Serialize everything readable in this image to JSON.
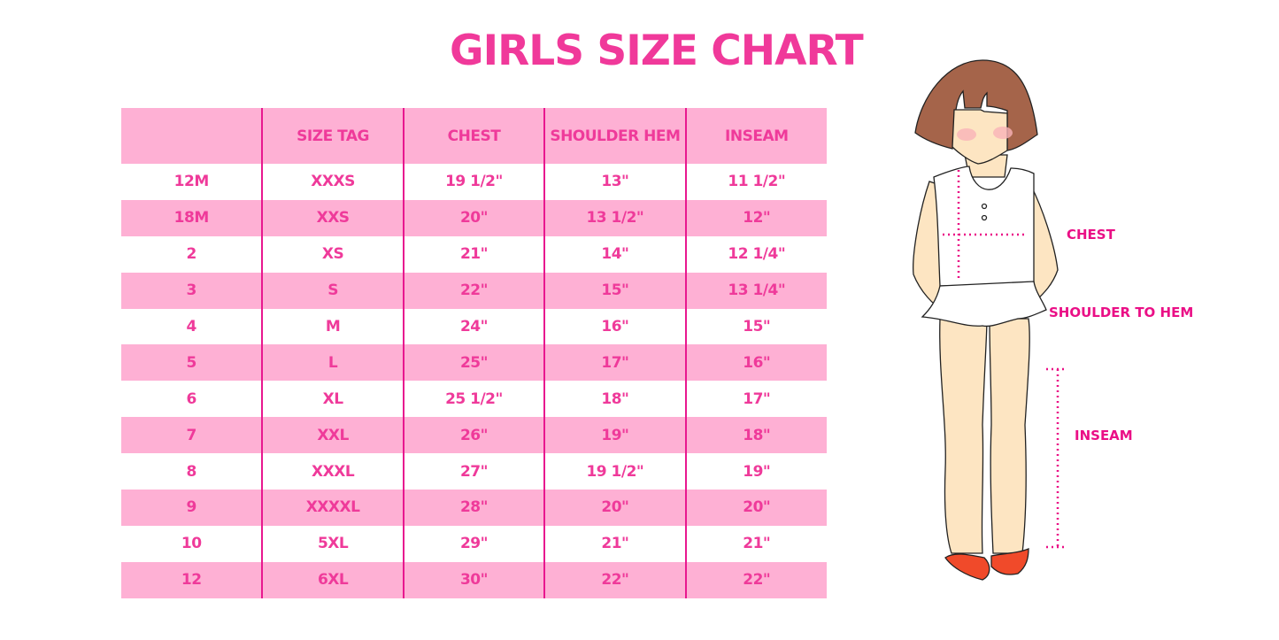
{
  "title": "GIRLS SIZE CHART",
  "table": {
    "headers": [
      "",
      "SIZE TAG",
      "CHEST",
      "SHOULDER HEM",
      "INSEAM"
    ],
    "rows": [
      [
        "12M",
        "XXXS",
        "19 1/2\"",
        "13\"",
        "11 1/2\""
      ],
      [
        "18M",
        "XXS",
        "20\"",
        "13 1/2\"",
        "12\""
      ],
      [
        "2",
        "XS",
        "21\"",
        "14\"",
        "12 1/4\""
      ],
      [
        "3",
        "S",
        "22\"",
        "15\"",
        "13 1/4\""
      ],
      [
        "4",
        "M",
        "24\"",
        "16\"",
        "15\""
      ],
      [
        "5",
        "L",
        "25\"",
        "17\"",
        "16\""
      ],
      [
        "6",
        "XL",
        "25 1/2\"",
        "18\"",
        "17\""
      ],
      [
        "7",
        "XXL",
        "26\"",
        "19\"",
        "18\""
      ],
      [
        "8",
        "XXXL",
        "27\"",
        "19 1/2\"",
        "19\""
      ],
      [
        "9",
        "XXXXL",
        "28\"",
        "20\"",
        "20\""
      ],
      [
        "10",
        "5XL",
        "29\"",
        "21\"",
        "21\""
      ],
      [
        "12",
        "6XL",
        "30\"",
        "22\"",
        "22\""
      ]
    ]
  },
  "figure": {
    "labels": {
      "chest": "CHEST",
      "shoulder_to_hem": "SHOULDER TO HEM",
      "inseam": "INSEAM"
    }
  },
  "colors": {
    "accent": "#f0399a",
    "row_pink": "#feb0d4",
    "divider": "#e8178f",
    "measure": "#ea0f86"
  }
}
